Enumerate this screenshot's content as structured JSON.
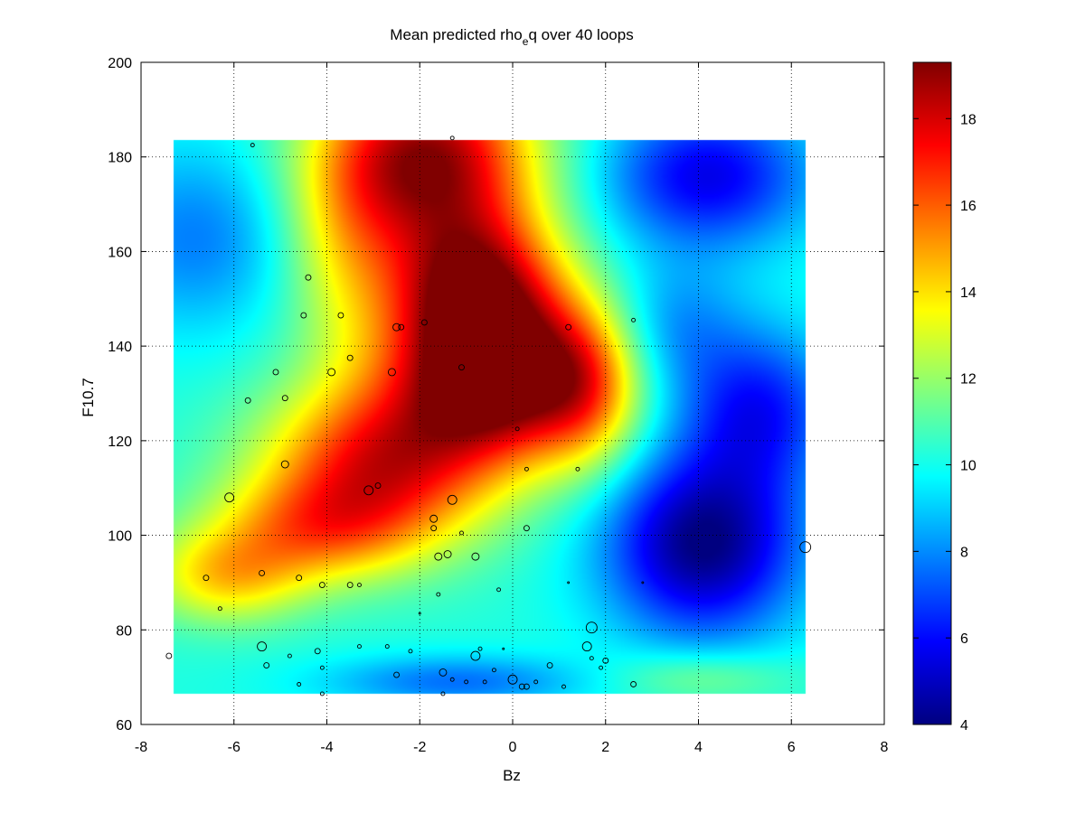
{
  "chart_data": {
    "type": "heatmap",
    "title": "Mean predicted rho",
    "title_subscript": "e",
    "title_suffix": "q over 40 loops",
    "xlabel": "Bz",
    "ylabel": "F10.7",
    "xlim": [
      -8,
      8
    ],
    "ylim": [
      60,
      200
    ],
    "xticks": [
      -8,
      -6,
      -4,
      -2,
      0,
      2,
      4,
      6,
      8
    ],
    "yticks": [
      60,
      80,
      100,
      120,
      140,
      160,
      180,
      200
    ],
    "grid": true,
    "colormap": "jet",
    "clim": [
      4,
      19.3
    ],
    "colorbar_ticks": [
      4,
      6,
      8,
      10,
      12,
      14,
      16,
      18
    ],
    "heatmap_extent": {
      "x": [
        -7.3,
        6.3
      ],
      "y": [
        66.5,
        183.5
      ]
    },
    "heatmap_features": [
      {
        "x": -0.3,
        "y": 133,
        "value": 19.3,
        "sx": 1.6,
        "sy": 12
      },
      {
        "x": -1.8,
        "y": 180,
        "value": 18.8,
        "sx": 1.6,
        "sy": 14
      },
      {
        "x": -0.8,
        "y": 152,
        "value": 18.0,
        "sx": 1.3,
        "sy": 12
      },
      {
        "x": -2.8,
        "y": 115,
        "value": 17.0,
        "sx": 1.8,
        "sy": 12
      },
      {
        "x": -4.3,
        "y": 101,
        "value": 14.2,
        "sx": 1.6,
        "sy": 8
      },
      {
        "x": -6.2,
        "y": 91,
        "value": 13.8,
        "sx": 1.2,
        "sy": 7
      },
      {
        "x": -3.6,
        "y": 160,
        "value": 12.8,
        "sx": 1.0,
        "sy": 18
      },
      {
        "x": 1.6,
        "y": 131,
        "value": 13.5,
        "sx": 0.8,
        "sy": 12
      },
      {
        "x": -6.8,
        "y": 163,
        "value": 7.8,
        "sx": 1.6,
        "sy": 14
      },
      {
        "x": 4.1,
        "y": 98,
        "value": 4.0,
        "sx": 1.5,
        "sy": 14
      },
      {
        "x": 4.2,
        "y": 176,
        "value": 5.6,
        "sx": 1.6,
        "sy": 11
      },
      {
        "x": 5.3,
        "y": 127,
        "value": 6.3,
        "sx": 1.2,
        "sy": 12
      },
      {
        "x": 3.5,
        "y": 144,
        "value": 8.2,
        "sx": 1.0,
        "sy": 10
      },
      {
        "x": -1.2,
        "y": 69,
        "value": 7.6,
        "sx": 2.0,
        "sy": 4
      },
      {
        "x": 4.0,
        "y": 70,
        "value": 12.0,
        "sx": 1.4,
        "sy": 4
      }
    ],
    "heatmap_background": 10.2,
    "scatter": [
      {
        "x": -5.6,
        "y": 182.5,
        "s": 2
      },
      {
        "x": -1.3,
        "y": 184,
        "s": 2
      },
      {
        "x": -4.4,
        "y": 154.5,
        "s": 3
      },
      {
        "x": -4.5,
        "y": 146.5,
        "s": 3
      },
      {
        "x": -3.7,
        "y": 146.5,
        "s": 3
      },
      {
        "x": -2.5,
        "y": 144,
        "s": 4
      },
      {
        "x": -2.4,
        "y": 144,
        "s": 3
      },
      {
        "x": -1.9,
        "y": 145,
        "s": 3
      },
      {
        "x": 1.2,
        "y": 144,
        "s": 3
      },
      {
        "x": 2.6,
        "y": 145.5,
        "s": 2
      },
      {
        "x": -5.1,
        "y": 134.5,
        "s": 3
      },
      {
        "x": -3.9,
        "y": 134.5,
        "s": 4
      },
      {
        "x": -3.5,
        "y": 137.5,
        "s": 3
      },
      {
        "x": -2.6,
        "y": 134.5,
        "s": 4
      },
      {
        "x": -1.1,
        "y": 135.5,
        "s": 3
      },
      {
        "x": -5.7,
        "y": 128.5,
        "s": 3
      },
      {
        "x": -4.9,
        "y": 129,
        "s": 3
      },
      {
        "x": 0.1,
        "y": 122.5,
        "s": 2
      },
      {
        "x": -4.9,
        "y": 115,
        "s": 4
      },
      {
        "x": 0.3,
        "y": 114,
        "s": 2
      },
      {
        "x": 1.4,
        "y": 114,
        "s": 2
      },
      {
        "x": -6.1,
        "y": 108,
        "s": 5
      },
      {
        "x": -3.1,
        "y": 109.5,
        "s": 5
      },
      {
        "x": -2.9,
        "y": 110.5,
        "s": 3
      },
      {
        "x": -1.3,
        "y": 107.5,
        "s": 5
      },
      {
        "x": -1.7,
        "y": 103.5,
        "s": 4
      },
      {
        "x": -1.7,
        "y": 101.5,
        "s": 3
      },
      {
        "x": -1.1,
        "y": 100.5,
        "s": 2
      },
      {
        "x": 0.3,
        "y": 101.5,
        "s": 3
      },
      {
        "x": -1.6,
        "y": 95.5,
        "s": 4
      },
      {
        "x": -1.4,
        "y": 96,
        "s": 4
      },
      {
        "x": -0.8,
        "y": 95.5,
        "s": 4
      },
      {
        "x": 6.3,
        "y": 97.5,
        "s": 6
      },
      {
        "x": -6.6,
        "y": 91,
        "s": 3
      },
      {
        "x": -5.4,
        "y": 92,
        "s": 3
      },
      {
        "x": -4.6,
        "y": 91,
        "s": 3
      },
      {
        "x": -4.1,
        "y": 89.5,
        "s": 3
      },
      {
        "x": -3.5,
        "y": 89.5,
        "s": 3
      },
      {
        "x": -3.3,
        "y": 89.5,
        "s": 2
      },
      {
        "x": -1.6,
        "y": 87.5,
        "s": 2
      },
      {
        "x": -0.3,
        "y": 88.5,
        "s": 2
      },
      {
        "x": 1.2,
        "y": 90,
        "s": 1
      },
      {
        "x": 2.8,
        "y": 90,
        "s": 1
      },
      {
        "x": -6.3,
        "y": 84.5,
        "s": 2
      },
      {
        "x": -2.0,
        "y": 83.5,
        "s": 1
      },
      {
        "x": 1.7,
        "y": 80.5,
        "s": 6
      },
      {
        "x": -7.4,
        "y": 74.5,
        "s": 3
      },
      {
        "x": -5.4,
        "y": 76.5,
        "s": 5
      },
      {
        "x": -5.3,
        "y": 72.5,
        "s": 3
      },
      {
        "x": -4.8,
        "y": 74.5,
        "s": 2
      },
      {
        "x": -4.2,
        "y": 75.5,
        "s": 3
      },
      {
        "x": -3.3,
        "y": 76.5,
        "s": 2
      },
      {
        "x": -2.7,
        "y": 76.5,
        "s": 2
      },
      {
        "x": -2.2,
        "y": 75.5,
        "s": 2
      },
      {
        "x": -0.8,
        "y": 74.5,
        "s": 5
      },
      {
        "x": -0.7,
        "y": 76,
        "s": 2
      },
      {
        "x": -0.2,
        "y": 76,
        "s": 1
      },
      {
        "x": 1.6,
        "y": 76.5,
        "s": 5
      },
      {
        "x": 1.7,
        "y": 74,
        "s": 2
      },
      {
        "x": 1.9,
        "y": 72,
        "s": 2
      },
      {
        "x": 2.0,
        "y": 73.5,
        "s": 3
      },
      {
        "x": 0.8,
        "y": 72.5,
        "s": 3
      },
      {
        "x": -4.1,
        "y": 72,
        "s": 2
      },
      {
        "x": -4.6,
        "y": 68.5,
        "s": 2
      },
      {
        "x": -2.5,
        "y": 70.5,
        "s": 3
      },
      {
        "x": -1.5,
        "y": 71,
        "s": 4
      },
      {
        "x": -1.3,
        "y": 69.5,
        "s": 2
      },
      {
        "x": -1.0,
        "y": 69,
        "s": 2
      },
      {
        "x": -0.4,
        "y": 71.5,
        "s": 2
      },
      {
        "x": 0.0,
        "y": 69.5,
        "s": 5
      },
      {
        "x": 0.2,
        "y": 68,
        "s": 3
      },
      {
        "x": 0.3,
        "y": 68,
        "s": 3
      },
      {
        "x": 0.5,
        "y": 69,
        "s": 2
      },
      {
        "x": -0.6,
        "y": 69,
        "s": 2
      },
      {
        "x": 1.1,
        "y": 68,
        "s": 2
      },
      {
        "x": 2.6,
        "y": 68.5,
        "s": 3
      },
      {
        "x": -4.1,
        "y": 66.5,
        "s": 2
      },
      {
        "x": -1.5,
        "y": 66.5,
        "s": 2
      }
    ]
  }
}
